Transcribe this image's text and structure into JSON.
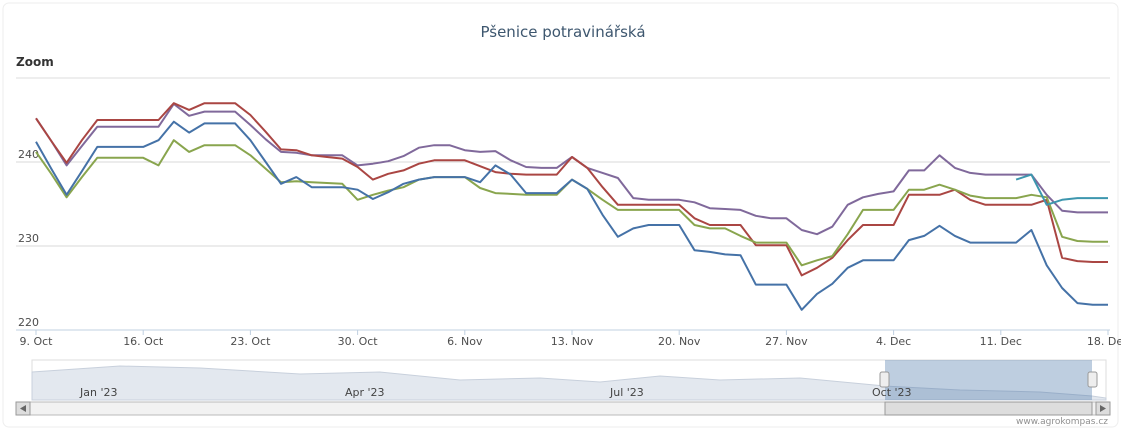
{
  "chart_data": {
    "type": "line",
    "title": "Pšenice potravinářská",
    "zoom_label": "Zoom",
    "categories": [
      "9. Oct",
      null,
      null,
      null,
      null,
      null,
      null,
      "16. Oct",
      null,
      null,
      null,
      null,
      null,
      null,
      "23. Oct",
      null,
      null,
      null,
      null,
      null,
      null,
      "30. Oct",
      null,
      null,
      null,
      null,
      null,
      null,
      "6. Nov",
      null,
      null,
      null,
      null,
      null,
      null,
      "13. Nov",
      null,
      null,
      null,
      null,
      null,
      null,
      "20. Nov",
      null,
      null,
      null,
      null,
      null,
      null,
      "27. Nov",
      null,
      null,
      null,
      null,
      null,
      null,
      "4. Dec",
      null,
      null,
      null,
      null,
      null,
      null,
      "11. Dec",
      null,
      null,
      null,
      null,
      null,
      null,
      "18. Dec"
    ],
    "series": [
      {
        "color": "#80699B",
        "values": [
          245.2,
          242.5,
          239.6,
          241.9,
          244.2,
          244.2,
          244.2,
          244.2,
          244.2,
          246.9,
          245.5,
          246.0,
          246.0,
          246.0,
          244.4,
          242.7,
          241.2,
          241.1,
          240.8,
          240.8,
          240.8,
          239.6,
          239.8,
          240.1,
          240.7,
          241.7,
          242.0,
          242.0,
          241.4,
          241.2,
          241.3,
          240.2,
          239.4,
          239.3,
          239.3,
          240.6,
          239.3,
          238.7,
          238.1,
          235.7,
          235.5,
          235.5,
          235.5,
          235.2,
          234.5,
          234.4,
          234.3,
          233.6,
          233.3,
          233.3,
          231.9,
          231.4,
          232.3,
          234.9,
          235.8,
          236.2,
          236.5,
          239.0,
          239.0,
          240.8,
          239.3,
          238.7,
          238.5,
          238.5,
          238.5,
          238.5,
          236.1,
          234.2,
          234.0,
          234.0,
          234.0
        ]
      },
      {
        "color": "#AA4643",
        "values": [
          245.2,
          242.5,
          239.9,
          242.6,
          245.0,
          245.0,
          245.0,
          245.0,
          245.0,
          247.0,
          246.2,
          247.0,
          247.0,
          247.0,
          245.6,
          243.6,
          241.5,
          241.4,
          240.8,
          240.6,
          240.4,
          239.4,
          237.9,
          238.6,
          239.0,
          239.8,
          240.2,
          240.2,
          240.2,
          239.5,
          238.8,
          238.6,
          238.5,
          238.5,
          238.5,
          240.6,
          239.3,
          237.0,
          234.9,
          234.9,
          234.9,
          234.9,
          234.9,
          233.3,
          232.5,
          232.5,
          232.5,
          230.1,
          230.1,
          230.1,
          226.5,
          227.4,
          228.6,
          230.7,
          232.5,
          232.5,
          232.5,
          236.1,
          236.1,
          236.1,
          236.7,
          235.5,
          234.9,
          234.9,
          234.9,
          234.9,
          235.5,
          228.6,
          228.2,
          228.1,
          228.1
        ]
      },
      {
        "color": "#89A54E",
        "values": [
          241.2,
          238.6,
          235.8,
          238.2,
          240.5,
          240.5,
          240.5,
          240.5,
          239.6,
          242.6,
          241.2,
          242.0,
          242.0,
          242.0,
          240.8,
          239.2,
          237.6,
          237.7,
          237.6,
          237.5,
          237.4,
          235.5,
          236.1,
          236.6,
          237.0,
          237.9,
          238.2,
          238.2,
          238.2,
          236.9,
          236.3,
          236.2,
          236.1,
          236.1,
          236.1,
          237.9,
          236.8,
          235.5,
          234.3,
          234.3,
          234.3,
          234.3,
          234.3,
          232.5,
          232.1,
          232.1,
          231.2,
          230.4,
          230.4,
          230.4,
          227.7,
          228.3,
          228.8,
          231.4,
          234.3,
          234.3,
          234.3,
          236.7,
          236.7,
          237.3,
          236.7,
          236.0,
          235.7,
          235.7,
          235.7,
          236.1,
          235.8,
          231.1,
          230.6,
          230.5,
          230.5
        ]
      },
      {
        "color": "#4572A7",
        "values": [
          242.4,
          239.2,
          236.1,
          238.9,
          241.8,
          241.8,
          241.8,
          241.8,
          242.6,
          244.8,
          243.5,
          244.6,
          244.6,
          244.6,
          242.6,
          240.0,
          237.4,
          238.2,
          237.0,
          237.0,
          237.0,
          236.7,
          235.6,
          236.4,
          237.4,
          237.9,
          238.2,
          238.2,
          238.2,
          237.6,
          239.6,
          238.5,
          236.3,
          236.3,
          236.3,
          237.9,
          236.8,
          233.7,
          231.1,
          232.1,
          232.5,
          232.5,
          232.5,
          229.5,
          229.3,
          229.0,
          228.9,
          225.4,
          225.4,
          225.4,
          222.4,
          224.3,
          225.5,
          227.4,
          228.3,
          228.3,
          228.3,
          230.7,
          231.2,
          232.4,
          231.2,
          230.4,
          230.4,
          230.4,
          230.4,
          231.9,
          227.7,
          225.0,
          223.2,
          223.0,
          223.0
        ]
      },
      {
        "color": "#3D96AE",
        "values": [
          null,
          null,
          null,
          null,
          null,
          null,
          null,
          null,
          null,
          null,
          null,
          null,
          null,
          null,
          null,
          null,
          null,
          null,
          null,
          null,
          null,
          null,
          null,
          null,
          null,
          null,
          null,
          null,
          null,
          null,
          null,
          null,
          null,
          null,
          null,
          null,
          null,
          null,
          null,
          null,
          null,
          null,
          null,
          null,
          null,
          null,
          null,
          null,
          null,
          null,
          null,
          null,
          null,
          null,
          null,
          null,
          null,
          null,
          null,
          null,
          null,
          null,
          null,
          null,
          237.9,
          238.5,
          234.9,
          235.5,
          235.7,
          235.7,
          235.7
        ]
      }
    ],
    "ylim": [
      220,
      250
    ],
    "yticks": [
      220,
      230,
      240
    ],
    "grid": true,
    "navigator_labels": [
      "Jan '23",
      "Apr '23",
      "Jul '23",
      "Oct '23"
    ],
    "credits": "www.agrokompas.cz"
  }
}
